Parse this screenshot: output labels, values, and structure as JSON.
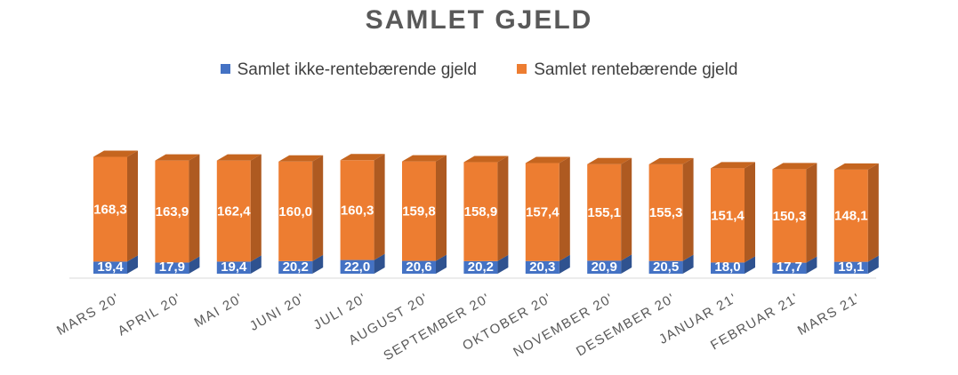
{
  "chart_data": {
    "type": "bar",
    "stacked": true,
    "title": "SAMLET GJELD",
    "categories": [
      "MARS 20'",
      "APRIL 20'",
      "MAI 20'",
      "JUNI 20'",
      "JULI 20'",
      "AUGUST 20'",
      "SEPTEMBER 20'",
      "OKTOBER 20'",
      "NOVEMBER 20'",
      "DESEMBER 20'",
      "JANUAR 21'",
      "FEBRUAR 21'",
      "MARS 21'"
    ],
    "series": [
      {
        "name": "Samlet ikke-rentebærende gjeld",
        "color": "#4472c4",
        "values": [
          19.4,
          17.9,
          19.4,
          20.2,
          22.0,
          20.6,
          20.2,
          20.3,
          20.9,
          20.5,
          18.0,
          17.7,
          19.1
        ],
        "labels": [
          "19,4",
          "17,9",
          "19,4",
          "20,2",
          "22,0",
          "20,6",
          "20,2",
          "20,3",
          "20,9",
          "20,5",
          "18,0",
          "17,7",
          "19,1"
        ]
      },
      {
        "name": "Samlet rentebærende gjeld",
        "color": "#ed7d31",
        "values": [
          168.3,
          163.9,
          162.4,
          160.0,
          160.3,
          159.8,
          158.9,
          157.4,
          155.1,
          155.3,
          151.4,
          150.3,
          148.1
        ],
        "labels": [
          "168,3",
          "163,9",
          "162,4",
          "160,0",
          "160,3",
          "159,8",
          "158,9",
          "157,4",
          "155,1",
          "155,3",
          "151,4",
          "150,3",
          "148,1"
        ]
      }
    ],
    "legend_position": "top",
    "grid": false
  }
}
